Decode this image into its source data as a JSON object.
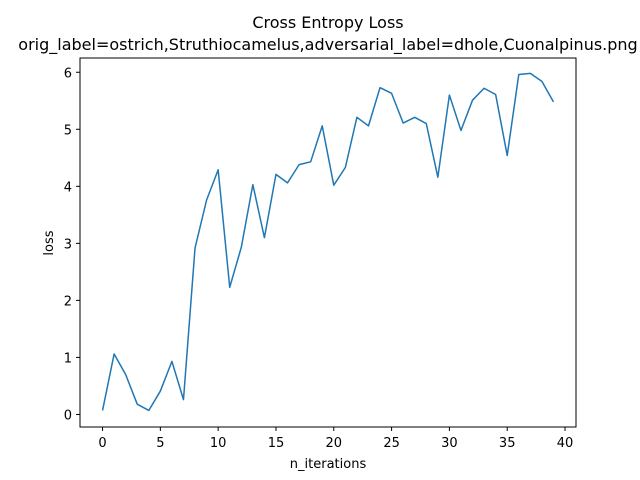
{
  "chart_data": {
    "type": "line",
    "title": "Cross Entropy Loss",
    "subtitle": "orig_label=ostrich,Struthiocamelus,adversarial_label=dhole,Cuonalpinus.png",
    "xlabel": "n_iterations",
    "ylabel": "loss",
    "xlim": [
      -1.95,
      40.95
    ],
    "ylim": [
      -0.22,
      6.25
    ],
    "xticks": [
      0,
      5,
      10,
      15,
      20,
      25,
      30,
      35,
      40
    ],
    "yticks": [
      0,
      1,
      2,
      3,
      4,
      5,
      6
    ],
    "grid": false,
    "series": [
      {
        "color": "#1f77b4",
        "x": [
          0,
          1,
          2,
          3,
          4,
          5,
          6,
          7,
          8,
          9,
          10,
          11,
          12,
          13,
          14,
          15,
          16,
          17,
          18,
          19,
          20,
          21,
          22,
          23,
          24,
          25,
          26,
          27,
          28,
          29,
          30,
          31,
          32,
          33,
          34,
          35,
          36,
          37,
          38,
          39
        ],
        "values": [
          0.07,
          1.06,
          0.7,
          0.18,
          0.07,
          0.41,
          0.93,
          0.26,
          2.92,
          3.76,
          4.29,
          2.23,
          2.93,
          4.03,
          3.1,
          4.21,
          4.06,
          4.38,
          4.43,
          5.06,
          4.02,
          4.33,
          5.21,
          5.06,
          5.73,
          5.63,
          5.11,
          5.21,
          5.1,
          4.16,
          5.6,
          4.98,
          5.51,
          5.72,
          5.61,
          4.54,
          5.96,
          5.98,
          5.84,
          5.48
        ]
      }
    ]
  }
}
